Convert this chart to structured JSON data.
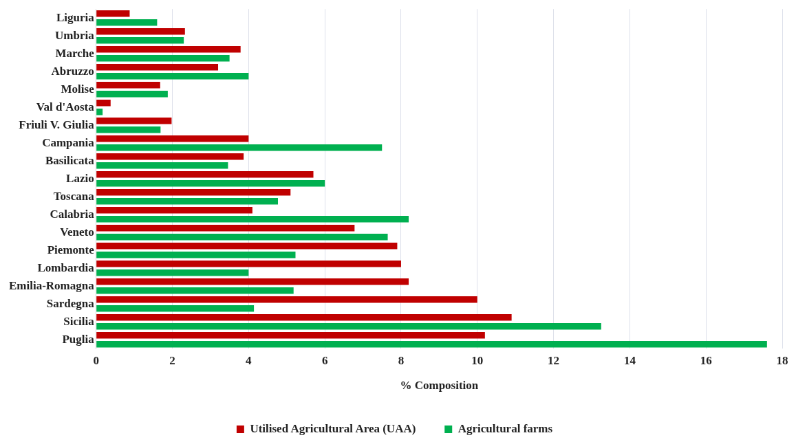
{
  "chart_data": {
    "type": "bar",
    "orientation": "horizontal",
    "xlabel": "% Composition",
    "categories": [
      "Liguria",
      "Umbria",
      "Marche",
      "Abruzzo",
      "Molise",
      "Val d'Aosta",
      "Friuli V. Giulia",
      "Campania",
      "Basilicata",
      "Lazio",
      "Toscana",
      "Calabria",
      "Veneto",
      "Piemonte",
      "Lombardia",
      "Emilia-Romagna",
      "Sardegna",
      "Sicilia",
      "Puglia"
    ],
    "series": [
      {
        "name": "Utilised Agricultural Area (UAA)",
        "color": "#c00000",
        "values": [
          0.88,
          2.33,
          3.79,
          3.2,
          1.68,
          0.38,
          1.98,
          4.0,
          3.87,
          5.7,
          5.1,
          4.1,
          6.78,
          7.9,
          8.0,
          8.2,
          10.0,
          10.9,
          10.2
        ]
      },
      {
        "name": "Agricultural farms",
        "color": "#00b050",
        "values": [
          1.6,
          2.3,
          3.5,
          4.0,
          1.88,
          0.17,
          1.69,
          7.5,
          3.46,
          6.0,
          4.77,
          8.2,
          7.65,
          5.23,
          4.0,
          5.18,
          4.14,
          13.25,
          17.6
        ]
      }
    ],
    "xlim": [
      0,
      18
    ],
    "xticks": [
      0,
      2,
      4,
      6,
      8,
      10,
      12,
      14,
      16,
      18
    ],
    "grid": "x",
    "legend": "bottom"
  }
}
